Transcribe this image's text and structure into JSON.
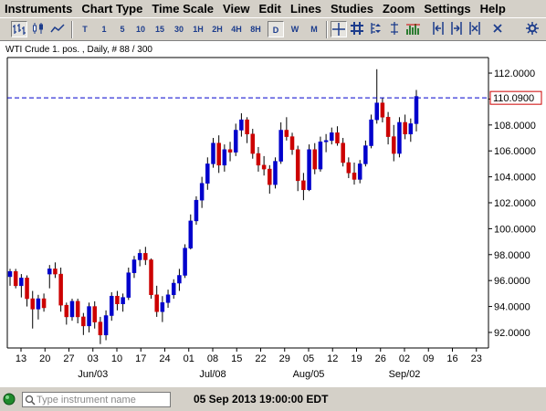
{
  "menu": [
    "Instruments",
    "Chart Type",
    "Time Scale",
    "View",
    "Edit",
    "Lines",
    "Studies",
    "Zoom",
    "Settings",
    "Help"
  ],
  "toolbar": {
    "period_buttons": [
      "T",
      "1",
      "5",
      "10",
      "15",
      "30",
      "1H",
      "2H",
      "4H",
      "8H",
      "D",
      "W",
      "M"
    ],
    "selected_period": "D",
    "icons": [
      "bar-chart-icon",
      "candlestick-icon",
      "line-chart-icon",
      "crosshair-icon",
      "grid-icon",
      "scale-icon",
      "volume-icon",
      "collapse-left-icon",
      "expand-right-icon",
      "shrink-icon",
      "expand-icon",
      "close-icon"
    ]
  },
  "chart_title": "WTI Crude 1. pos. , Daily, # 88 / 300",
  "status": {
    "search_placeholder": "Type instrument name",
    "datetime": "05 Sep 2013 19:00:00 EDT",
    "connection_color": "#1f8a2c"
  },
  "chart_data": {
    "type": "candlestick",
    "current_price": "110.0900",
    "current_price_value": 110.09,
    "y_ticks": [
      "112.0000",
      "110.0000",
      "108.0000",
      "106.0000",
      "104.0000",
      "102.0000",
      "100.0000",
      "98.0000",
      "96.0000",
      "94.0000",
      "92.0000"
    ],
    "ylim": [
      90.8,
      113.2
    ],
    "day_ticks": [
      "13",
      "20",
      "27",
      "03",
      "10",
      "17",
      "24",
      "01",
      "08",
      "15",
      "22",
      "29",
      "05",
      "12",
      "19",
      "26",
      "02",
      "09",
      "16",
      "23"
    ],
    "month_labels": [
      "Jun/03",
      "Jul/08",
      "Aug/05",
      "Sep/02"
    ],
    "colors": {
      "up": "#0000cc",
      "down": "#cc0000"
    },
    "candles": [
      [
        96.3,
        96.9,
        95.6,
        96.7
      ],
      [
        96.7,
        96.9,
        95.4,
        95.6
      ],
      [
        95.6,
        96.5,
        94.7,
        96.2
      ],
      [
        96.2,
        96.4,
        94.0,
        94.6
      ],
      [
        94.6,
        95.2,
        92.3,
        93.8
      ],
      [
        93.8,
        94.9,
        93.0,
        94.6
      ],
      [
        94.6,
        95.0,
        93.6,
        93.9
      ],
      [
        96.5,
        97.2,
        95.4,
        96.9
      ],
      [
        96.9,
        97.4,
        96.2,
        96.5
      ],
      [
        96.5,
        97.0,
        93.6,
        94.1
      ],
      [
        94.1,
        94.3,
        92.6,
        93.2
      ],
      [
        93.2,
        94.6,
        92.9,
        94.4
      ],
      [
        94.4,
        94.6,
        92.7,
        93.2
      ],
      [
        93.2,
        93.5,
        91.8,
        92.5
      ],
      [
        92.5,
        94.3,
        92.0,
        94.0
      ],
      [
        94.0,
        94.4,
        92.3,
        92.8
      ],
      [
        92.8,
        93.2,
        91.1,
        91.8
      ],
      [
        91.8,
        93.7,
        91.4,
        93.3
      ],
      [
        93.3,
        95.1,
        92.9,
        94.8
      ],
      [
        94.8,
        95.2,
        93.7,
        94.2
      ],
      [
        94.2,
        95.0,
        93.6,
        94.7
      ],
      [
        94.7,
        97.0,
        94.5,
        96.6
      ],
      [
        96.6,
        97.9,
        96.2,
        97.6
      ],
      [
        97.6,
        98.4,
        97.1,
        98.1
      ],
      [
        98.1,
        98.6,
        97.2,
        97.6
      ],
      [
        97.6,
        97.7,
        94.6,
        94.9
      ],
      [
        94.9,
        95.6,
        93.2,
        93.6
      ],
      [
        93.6,
        94.8,
        92.8,
        94.3
      ],
      [
        94.3,
        95.3,
        93.9,
        94.9
      ],
      [
        94.9,
        96.1,
        94.6,
        95.8
      ],
      [
        95.8,
        96.9,
        95.2,
        96.4
      ],
      [
        96.4,
        98.8,
        96.2,
        98.5
      ],
      [
        98.5,
        101.1,
        98.4,
        100.6
      ],
      [
        100.6,
        102.5,
        100.3,
        102.2
      ],
      [
        102.2,
        104.0,
        101.6,
        103.5
      ],
      [
        103.5,
        105.5,
        103.0,
        105.0
      ],
      [
        105.0,
        107.0,
        104.7,
        106.6
      ],
      [
        106.6,
        107.2,
        104.3,
        104.9
      ],
      [
        104.9,
        106.5,
        104.4,
        106.1
      ],
      [
        106.1,
        106.7,
        105.2,
        105.9
      ],
      [
        105.9,
        108.1,
        105.6,
        107.6
      ],
      [
        107.6,
        108.9,
        107.1,
        108.4
      ],
      [
        108.4,
        108.6,
        106.6,
        107.3
      ],
      [
        107.3,
        107.7,
        105.4,
        105.8
      ],
      [
        105.8,
        106.3,
        104.4,
        104.9
      ],
      [
        104.9,
        105.6,
        104.1,
        104.6
      ],
      [
        104.6,
        104.9,
        102.7,
        103.4
      ],
      [
        103.4,
        105.5,
        103.1,
        105.2
      ],
      [
        105.2,
        108.2,
        105.0,
        107.6
      ],
      [
        107.6,
        108.6,
        106.8,
        107.1
      ],
      [
        107.1,
        107.4,
        105.7,
        106.1
      ],
      [
        106.1,
        106.4,
        102.9,
        103.7
      ],
      [
        103.7,
        104.3,
        102.2,
        103.0
      ],
      [
        103.0,
        106.5,
        102.9,
        106.1
      ],
      [
        106.1,
        106.6,
        104.2,
        104.6
      ],
      [
        104.6,
        107.1,
        104.4,
        106.7
      ],
      [
        106.7,
        107.3,
        105.9,
        106.8
      ],
      [
        106.8,
        107.8,
        106.5,
        107.4
      ],
      [
        107.4,
        107.9,
        106.4,
        106.6
      ],
      [
        106.6,
        107.0,
        104.8,
        105.1
      ],
      [
        105.1,
        105.5,
        103.9,
        104.3
      ],
      [
        104.3,
        105.1,
        103.4,
        103.8
      ],
      [
        103.8,
        105.3,
        103.5,
        105.0
      ],
      [
        105.0,
        106.8,
        104.8,
        106.4
      ],
      [
        106.4,
        108.8,
        106.2,
        108.4
      ],
      [
        108.4,
        112.3,
        108.1,
        109.7
      ],
      [
        109.7,
        110.1,
        108.2,
        108.6
      ],
      [
        108.6,
        109.0,
        106.5,
        107.1
      ],
      [
        107.1,
        108.0,
        105.2,
        105.8
      ],
      [
        105.8,
        108.6,
        105.5,
        108.2
      ],
      [
        108.2,
        108.8,
        106.9,
        107.3
      ],
      [
        107.3,
        108.5,
        106.7,
        108.1
      ],
      [
        108.1,
        110.7,
        107.5,
        110.2
      ]
    ]
  }
}
